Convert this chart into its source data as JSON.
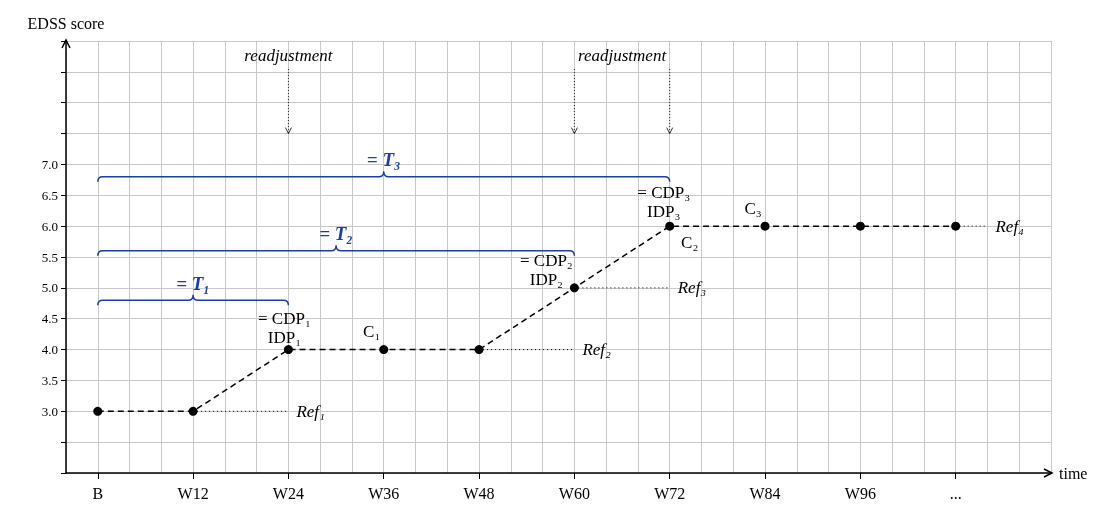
{
  "chart_data": {
    "type": "line",
    "xlabel": "time",
    "ylabel": "EDSS score",
    "categories": [
      null,
      "B",
      null,
      null,
      "W12",
      null,
      null,
      "W24",
      null,
      null,
      "W36",
      null,
      null,
      "W48",
      null,
      null,
      "W60",
      null,
      null,
      "W72",
      null,
      null,
      "W84",
      null,
      null,
      "W96",
      null,
      null,
      "...",
      null,
      null,
      null
    ],
    "ylim": [
      2,
      9
    ],
    "yticks": [
      {
        "value": 2,
        "label": null
      },
      {
        "value": 2.5,
        "label": null
      },
      {
        "value": 3,
        "label": "3.0"
      },
      3.5,
      {
        "value": 4,
        "label": "4.0"
      },
      4.5,
      {
        "value": 5,
        "label": "5.0"
      },
      5.5,
      {
        "value": 6,
        "label": "6.0"
      },
      6.5,
      {
        "value": 7,
        "label": "7.0"
      },
      {
        "value": 7.5,
        "label": null
      },
      {
        "value": 8,
        "label": null
      },
      {
        "value": 8.5,
        "label": null
      },
      {
        "value": 9,
        "label": null
      }
    ],
    "grid": true,
    "line_style": "dashed",
    "series": [
      {
        "color": "#000000",
        "marker": "circle",
        "values": [
          null,
          3,
          null,
          null,
          3,
          null,
          null,
          4,
          null,
          null,
          4,
          null,
          null,
          4,
          null,
          null,
          5,
          null,
          null,
          6,
          null,
          null,
          6,
          null,
          null,
          6,
          null,
          null,
          6,
          null,
          null,
          null
        ]
      },
      {
        "name": "Ref₁",
        "type": "line",
        "line_style": "dotted",
        "color": "#000000",
        "values": [
          null,
          null,
          null,
          null,
          3,
          null,
          null,
          3,
          null,
          null,
          null,
          null,
          null,
          null,
          null,
          null,
          null,
          null,
          null,
          null,
          null,
          null,
          null,
          null,
          null,
          null,
          null,
          null,
          null,
          null,
          null,
          null
        ]
      },
      {
        "name": "Ref₂",
        "type": "line",
        "line_style": "dotted",
        "color": "#000000",
        "values": [
          null,
          null,
          null,
          null,
          null,
          null,
          null,
          null,
          null,
          null,
          null,
          null,
          null,
          4,
          null,
          null,
          4,
          null,
          null,
          null,
          null,
          null,
          null,
          null,
          null,
          null,
          null,
          null,
          null,
          null,
          null,
          null
        ]
      },
      {
        "name": "Ref₃",
        "type": "line",
        "line_style": "dotted",
        "color": "#000000",
        "values": [
          null,
          null,
          null,
          null,
          null,
          null,
          null,
          null,
          null,
          null,
          null,
          null,
          null,
          null,
          null,
          null,
          5,
          null,
          null,
          5,
          null,
          null,
          null,
          null,
          null,
          null,
          null,
          null,
          null,
          null,
          null,
          null
        ]
      },
      {
        "name": "Ref₄",
        "type": "line",
        "line_style": "dotted",
        "color": "#000000",
        "values": [
          null,
          null,
          null,
          null,
          null,
          null,
          null,
          null,
          null,
          null,
          null,
          null,
          null,
          null,
          null,
          null,
          null,
          null,
          null,
          null,
          null,
          null,
          null,
          null,
          null,
          null,
          null,
          null,
          6,
          6,
          null,
          null
        ]
      }
    ],
    "annotations": [
      "readjustment",
      "readjustment",
      "= T₁",
      "= T₂",
      "= T₃",
      {
        "text": "= CDP₁\nIDP₁",
        "x": "W24",
        "y": 4
      },
      {
        "text": "C₁",
        "x": "W36",
        "y": 4
      },
      {
        "text": "= CDP₂\nIDP₂",
        "x": "W60",
        "y": 5
      },
      {
        "text": "= CDP₃\nIDP₃",
        "x": "W72",
        "y": 6
      },
      {
        "text": "C₂",
        "x": "W72",
        "y": 6
      },
      {
        "text": "C₃",
        "x": "W84",
        "y": 6
      }
    ]
  }
}
